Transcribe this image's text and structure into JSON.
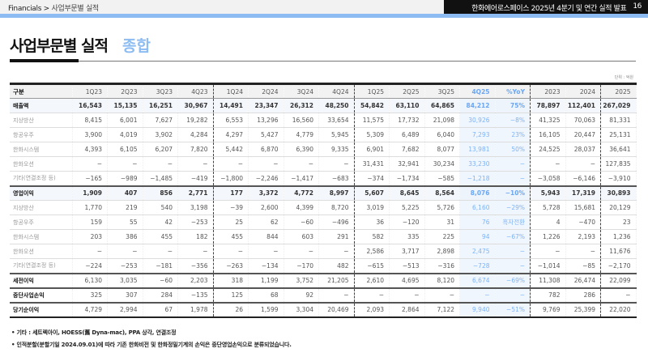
{
  "header": {
    "breadcrumb_root": "Financials",
    "breadcrumb_sep": ">",
    "breadcrumb_page": "사업부문별 실적",
    "deck_title": "한화에어로스페이스 2025년 4분기 및 연간 실적 발표",
    "page_number": "16"
  },
  "title": {
    "main": "사업부문별 실적",
    "sub": "종합"
  },
  "unit": "단위 : 억원",
  "colors": {
    "accent": "#8cbcf2",
    "highlight_text": "#7eb3f5",
    "highlight_bg": "#f0f6fd"
  },
  "table": {
    "columns": [
      "구분",
      "1Q23",
      "2Q23",
      "3Q23",
      "4Q23",
      "1Q24",
      "2Q24",
      "3Q24",
      "4Q24",
      "1Q25",
      "2Q25",
      "3Q25",
      "4Q25",
      "%YoY",
      "2023",
      "2024",
      "2025"
    ],
    "rows": [
      {
        "type": "main",
        "cells": [
          "매출액",
          "16,543",
          "15,135",
          "16,251",
          "30,967",
          "14,491",
          "23,347",
          "26,312",
          "48,250",
          "54,842",
          "63,110",
          "64,865",
          "84,212",
          "75%",
          "78,897",
          "112,401",
          "267,029"
        ]
      },
      {
        "type": "sub",
        "cells": [
          "지상방산",
          "8,415",
          "6,001",
          "7,627",
          "19,282",
          "6,553",
          "13,296",
          "16,560",
          "33,654",
          "11,575",
          "17,732",
          "21,098",
          "30,926",
          "−8%",
          "41,325",
          "70,063",
          "81,331"
        ]
      },
      {
        "type": "sub",
        "cells": [
          "항공우주",
          "3,900",
          "4,019",
          "3,902",
          "4,284",
          "4,297",
          "5,427",
          "4,779",
          "5,945",
          "5,309",
          "6,489",
          "6,040",
          "7,293",
          "23%",
          "16,105",
          "20,447",
          "25,131"
        ]
      },
      {
        "type": "sub",
        "cells": [
          "한화시스템",
          "4,393",
          "6,105",
          "6,207",
          "7,820",
          "5,442",
          "6,870",
          "6,390",
          "9,335",
          "6,901",
          "7,682",
          "8,077",
          "13,981",
          "50%",
          "24,525",
          "28,037",
          "36,641"
        ]
      },
      {
        "type": "sub",
        "cells": [
          "한화오션",
          "−",
          "−",
          "−",
          "−",
          "−",
          "−",
          "−",
          "−",
          "31,431",
          "32,941",
          "30,234",
          "33,230",
          "−",
          "−",
          "−",
          "127,835"
        ]
      },
      {
        "type": "sub",
        "cells": [
          "기타(연결조정 등)",
          "−165",
          "−989",
          "−1,485",
          "−419",
          "−1,800",
          "−2,246",
          "−1,417",
          "−683",
          "−374",
          "−1,734",
          "−585",
          "−1,218",
          "−",
          "−3,058",
          "−6,146",
          "−3,910"
        ]
      },
      {
        "type": "main sep",
        "cells": [
          "영업이익",
          "1,909",
          "407",
          "856",
          "2,771",
          "177",
          "3,372",
          "4,772",
          "8,997",
          "5,607",
          "8,645",
          "8,564",
          "8,076",
          "−10%",
          "5,943",
          "17,319",
          "30,893"
        ]
      },
      {
        "type": "sub",
        "cells": [
          "지상방산",
          "1,770",
          "219",
          "540",
          "3,198",
          "−39",
          "2,600",
          "4,399",
          "8,720",
          "3,019",
          "5,225",
          "5,726",
          "6,160",
          "−29%",
          "5,728",
          "15,681",
          "20,129"
        ]
      },
      {
        "type": "sub",
        "cells": [
          "항공우주",
          "159",
          "55",
          "42",
          "−253",
          "25",
          "62",
          "−60",
          "−496",
          "36",
          "−120",
          "31",
          "76",
          "흑자전환",
          "4",
          "−470",
          "23"
        ]
      },
      {
        "type": "sub",
        "cells": [
          "한화시스템",
          "203",
          "386",
          "455",
          "182",
          "455",
          "844",
          "603",
          "291",
          "582",
          "335",
          "225",
          "94",
          "−67%",
          "1,226",
          "2,193",
          "1,236"
        ]
      },
      {
        "type": "sub",
        "cells": [
          "한화오션",
          "−",
          "−",
          "−",
          "−",
          "−",
          "−",
          "−",
          "−",
          "2,586",
          "3,717",
          "2,898",
          "2,475",
          "−",
          "−",
          "−",
          "11,676"
        ]
      },
      {
        "type": "sub",
        "cells": [
          "기타(연결조정 등)",
          "−224",
          "−253",
          "−181",
          "−356",
          "−263",
          "−134",
          "−170",
          "482",
          "−615",
          "−513",
          "−316",
          "−728",
          "−",
          "−1,014",
          "−85",
          "−2,170"
        ]
      },
      {
        "type": "bold sep",
        "cells": [
          "세전이익",
          "6,130",
          "3,035",
          "−60",
          "2,203",
          "318",
          "1,199",
          "3,752",
          "21,205",
          "2,610",
          "4,695",
          "8,120",
          "6,674",
          "−69%",
          "11,308",
          "26,474",
          "22,099"
        ]
      },
      {
        "type": "bold sep",
        "cells": [
          "중단사업손익",
          "325",
          "307",
          "284",
          "−135",
          "125",
          "68",
          "92",
          "−",
          "−",
          "−",
          "−",
          "−",
          "−",
          "782",
          "286",
          "−"
        ]
      },
      {
        "type": "bold sep",
        "cells": [
          "당기순이익",
          "4,729",
          "2,994",
          "67",
          "1,978",
          "26",
          "1,599",
          "3,304",
          "20,469",
          "2,093",
          "2,864",
          "7,122",
          "9,940",
          "−51%",
          "9,769",
          "25,399",
          "22,020"
        ]
      }
    ]
  },
  "notes": [
    "• 기타 : 세트렉아이, HOESS(舊 Dyna-mac), PPA 상각, 연결조정",
    "• 인적분할(분할기일 2024.09.01)에 따라 기존 한화비전 및 한화정밀기계의 손익은 중단영업손익으로 분류되었습니다."
  ]
}
